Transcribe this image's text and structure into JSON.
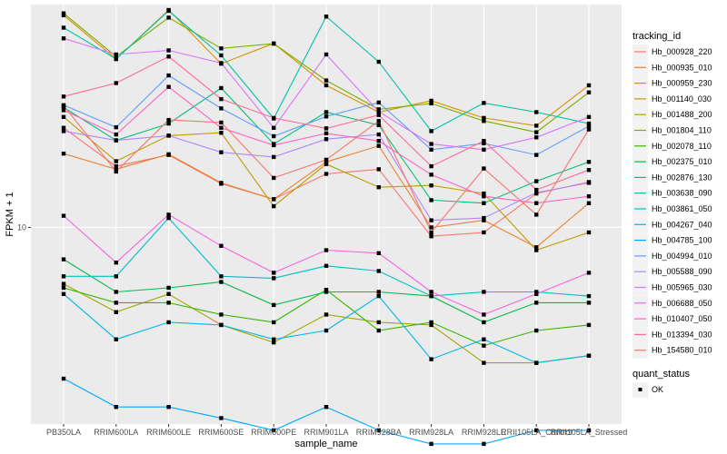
{
  "chart_data": {
    "type": "line",
    "title": "",
    "xlabel": "sample_name",
    "ylabel": "FPKM + 1",
    "y_scale": "log10",
    "ylim": [
      2.0,
      62.0
    ],
    "y_ticks": [
      {
        "value": 10,
        "label": "10"
      }
    ],
    "grid": true,
    "legend_position": "right",
    "categories": [
      "PB350LA",
      "RRIM600LA",
      "RRIM600LE",
      "RRIM600SE",
      "RRIM600PE",
      "RRIM901LA",
      "RRIM928BA",
      "RRIM928LA",
      "RRIM928LE",
      "RRII105LA_Control",
      "RRII105LA_Stressed"
    ],
    "legend_title": "tracking_id",
    "shape_legend_title": "quant_status",
    "shape_legend_items": [
      "OK"
    ],
    "series": [
      {
        "name": "Hb_000928_220",
        "color": "#F8766D",
        "values": [
          22.6,
          16.5,
          18.1,
          14.3,
          12.6,
          15.5,
          16.1,
          9.3,
          9.6,
          13.2,
          14.5
        ]
      },
      {
        "name": "Hb_000935_010",
        "color": "#EA8331",
        "values": [
          18.3,
          16.1,
          18.2,
          14.4,
          12.6,
          17.1,
          19.5,
          10.0,
          10.6,
          8.5,
          12.2
        ]
      },
      {
        "name": "Hb_000959_230",
        "color": "#D89000",
        "values": [
          56.8,
          39.7,
          59.3,
          38.2,
          45.1,
          32.0,
          25.7,
          28.2,
          24.5,
          23.0,
          32.0
        ]
      },
      {
        "name": "Hb_001140_030",
        "color": "#C09B00",
        "values": [
          24.7,
          17.2,
          21.2,
          21.7,
          11.9,
          16.8,
          13.9,
          14.1,
          13.2,
          8.3,
          9.6
        ]
      },
      {
        "name": "Hb_001488_200",
        "color": "#A3A500",
        "values": [
          6.3,
          5.0,
          5.8,
          4.5,
          3.9,
          4.9,
          4.6,
          4.5,
          3.3,
          3.3,
          3.5
        ]
      },
      {
        "name": "Hb_001804_110",
        "color": "#7CAE00",
        "values": [
          57.7,
          40.5,
          55.7,
          43.3,
          45.0,
          33.3,
          26.3,
          27.6,
          23.9,
          21.8,
          30.2
        ]
      },
      {
        "name": "Hb_002078_110",
        "color": "#39B600",
        "values": [
          6.1,
          5.4,
          5.4,
          4.9,
          4.6,
          6.0,
          4.3,
          4.6,
          3.8,
          4.3,
          4.5
        ]
      },
      {
        "name": "Hb_002375_010",
        "color": "#00BB4E",
        "values": [
          7.7,
          5.9,
          6.1,
          6.4,
          5.3,
          5.9,
          5.9,
          5.7,
          4.6,
          5.4,
          5.4
        ]
      },
      {
        "name": "Hb_002876_130",
        "color": "#00BF7D",
        "values": [
          26.7,
          20.4,
          23.4,
          31.3,
          19.8,
          25.7,
          23.1,
          12.5,
          12.2,
          14.6,
          17.1
        ]
      },
      {
        "name": "Hb_003638_090",
        "color": "#00C1A3",
        "values": [
          51.3,
          39.7,
          58.9,
          40.9,
          24.4,
          56.2,
          38.8,
          22.0,
          27.7,
          25.7,
          23.4
        ]
      },
      {
        "name": "Hb_003861_050",
        "color": "#00BFC4",
        "values": [
          6.7,
          6.7,
          10.8,
          6.7,
          6.6,
          7.3,
          7.0,
          5.7,
          5.9,
          5.9,
          5.7
        ]
      },
      {
        "name": "Hb_004267_040",
        "color": "#00B8E7",
        "values": [
          5.8,
          4.0,
          4.6,
          4.5,
          4.0,
          4.3,
          5.7,
          3.4,
          4.0,
          3.3,
          3.5
        ]
      },
      {
        "name": "Hb_004785_100",
        "color": "#00A9FF",
        "values": [
          2.9,
          2.3,
          2.3,
          2.1,
          1.9,
          2.3,
          1.9,
          1.7,
          1.7,
          1.9,
          1.9
        ]
      },
      {
        "name": "Hb_004994_010",
        "color": "#619CFF",
        "values": [
          27.2,
          22.7,
          34.7,
          26.5,
          21.1,
          24.8,
          27.8,
          18.9,
          19.9,
          18.1,
          22.9
        ]
      },
      {
        "name": "Hb_005588_090",
        "color": "#AE87FF",
        "values": [
          22.0,
          20.4,
          21.2,
          18.5,
          17.8,
          20.6,
          21.4,
          10.6,
          10.8,
          13.3,
          14.4
        ]
      },
      {
        "name": "Hb_005965_030",
        "color": "#DB72FB",
        "values": [
          47.0,
          41.2,
          42.6,
          38.4,
          22.6,
          41.2,
          25.8,
          19.8,
          18.9,
          20.9,
          24.7
        ]
      },
      {
        "name": "Hb_006688_050",
        "color": "#F564E3",
        "values": [
          11.0,
          7.5,
          11.1,
          8.6,
          6.9,
          8.3,
          8.1,
          5.9,
          4.9,
          5.8,
          6.9
        ]
      },
      {
        "name": "Hb_010407_050",
        "color": "#FF61C3",
        "values": [
          26.1,
          21.4,
          31.6,
          22.6,
          19.6,
          21.6,
          20.3,
          15.4,
          12.9,
          12.2,
          12.9
        ]
      },
      {
        "name": "Hb_013394_030",
        "color": "#FF6C91",
        "values": [
          29.2,
          32.6,
          40.5,
          28.6,
          24.5,
          22.5,
          25.1,
          16.5,
          20.3,
          13.6,
          16.0
        ]
      },
      {
        "name": "Hb_154580_010",
        "color": "#F8766D",
        "values": [
          27.1,
          15.8,
          24.1,
          23.6,
          15.0,
          17.4,
          23.9,
          9.6,
          16.2,
          11.1,
          22.3
        ]
      }
    ]
  }
}
